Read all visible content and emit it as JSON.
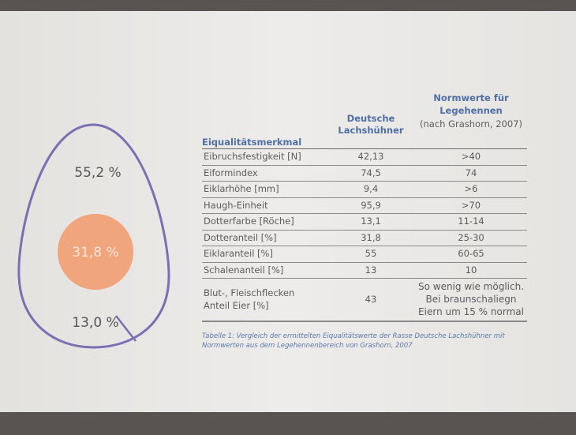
{
  "egg": {
    "labels": [
      "55,2 %",
      "31,8 %",
      "13,0 %"
    ]
  },
  "table": {
    "header": {
      "col0": "Eiqualitätsmerkmal",
      "col1": [
        "Deutsche",
        "Lachshühner"
      ],
      "col2": [
        "Normwerte für",
        "Legehennen"
      ],
      "col2_note": "(nach Grashorn, 2007)"
    },
    "rows": [
      [
        [
          "Eibruchsfestigkeit [N]"
        ],
        [
          "42,13"
        ],
        [
          ">40"
        ]
      ],
      [
        [
          "Eiformindex"
        ],
        [
          "74,5"
        ],
        [
          "74"
        ]
      ],
      [
        [
          "Eiklarhöhe [mm]"
        ],
        [
          "9,4"
        ],
        [
          ">6"
        ]
      ],
      [
        [
          "Haugh-Einheit"
        ],
        [
          "95,9"
        ],
        [
          ">70"
        ]
      ],
      [
        [
          "Dotterfarbe [Röche]"
        ],
        [
          "13,1"
        ],
        [
          "11-14"
        ]
      ],
      [
        [
          "Dotteranteil [%]"
        ],
        [
          "31,8"
        ],
        [
          "25-30"
        ]
      ],
      [
        [
          "Eiklaranteil [%]"
        ],
        [
          "55"
        ],
        [
          "60-65"
        ]
      ],
      [
        [
          "Schalenanteil [%]"
        ],
        [
          "13"
        ],
        [
          "10"
        ]
      ],
      [
        [
          "Blut-, Fleischflecken",
          "Anteil Eier [%]"
        ],
        [
          "43"
        ],
        [
          "So wenig wie möglich.",
          "Bei braunschaliegn",
          "Eiern um 15 % normal"
        ]
      ]
    ],
    "caption": [
      "Tabelle 1: Vergleich der ermittelten Eiqualitätswerte der Rasse Deutsche Lachshühner mit",
      "Normwerten aus dem Legehennenbereich von Grashorn, 2007"
    ]
  }
}
